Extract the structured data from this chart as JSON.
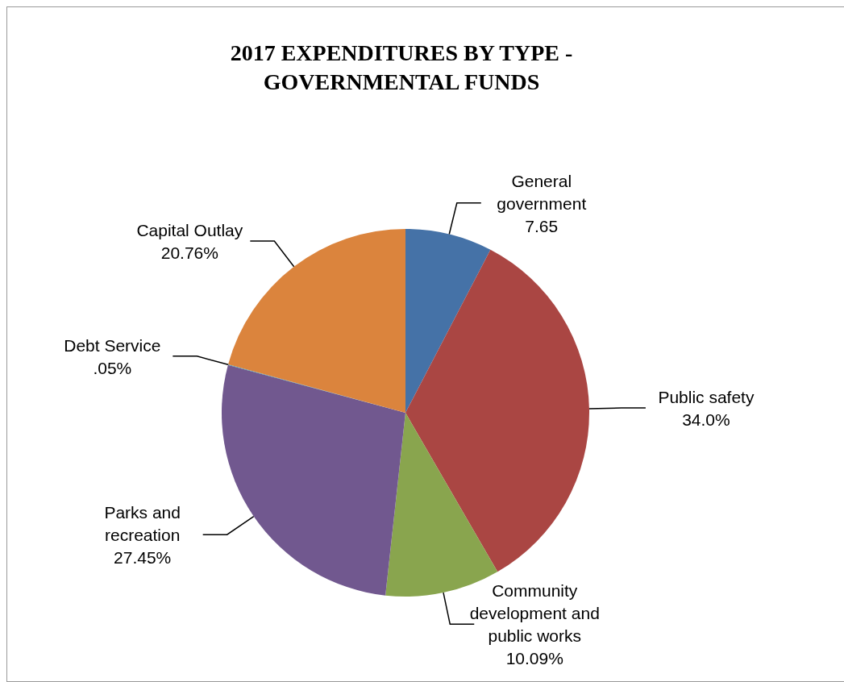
{
  "chart_data": {
    "type": "pie",
    "title": "2017 EXPENDITURES BY TYPE - GOVERNMENTAL FUNDS",
    "categories": [
      "General government",
      "Public safety",
      "Community development and public works",
      "Parks and recreation",
      "Debt Service",
      "Capital Outlay"
    ],
    "values": [
      7.65,
      34.0,
      10.09,
      27.45,
      0.05,
      20.76
    ],
    "value_labels": [
      "7.65",
      "34.0%",
      "10.09%",
      "27.45%",
      ".05%",
      "20.76%"
    ],
    "colors": [
      "#4572a7",
      "#aa4643",
      "#89a54e",
      "#71588f",
      "#4198af",
      "#db843d"
    ],
    "legend": false
  }
}
